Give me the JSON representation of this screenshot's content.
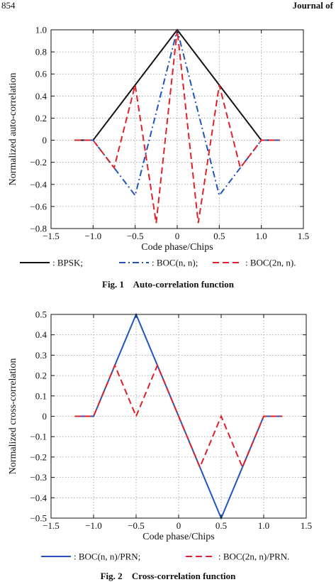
{
  "header": {
    "page_number": "854",
    "journal": "Journal of"
  },
  "figures": [
    {
      "caption_label": "Fig. 1",
      "caption_text": "Auto-correlation function"
    },
    {
      "caption_label": "Fig. 2",
      "caption_text": "Cross-correlation function"
    }
  ],
  "chart_data": [
    {
      "type": "line",
      "title": "",
      "xlabel": "Code phase/Chips",
      "ylabel": "Normalized  auto-correlation",
      "xlim": [
        -1.5,
        1.5
      ],
      "ylim": [
        -0.8,
        1.0
      ],
      "xticks": [
        -1.5,
        -1.0,
        -0.5,
        0,
        0.5,
        1.0,
        1.5
      ],
      "xtick_labels": [
        "−1.5",
        "−1.0",
        "−0.5",
        "0",
        "0.5",
        "1.0",
        "1.5"
      ],
      "yticks": [
        -0.8,
        -0.6,
        -0.4,
        -0.2,
        0,
        0.2,
        0.4,
        0.6,
        0.8,
        1.0
      ],
      "ytick_labels": [
        "−0.8",
        "−0.6",
        "−0.4",
        "−0.2",
        "0",
        "0.2",
        "0.4",
        "0.6",
        "0.8",
        "1.0"
      ],
      "grid": true,
      "legend_position": "below",
      "series": [
        {
          "name": ": BPSK;",
          "color": "#111111",
          "dash": "solid",
          "x": [
            -1.22,
            -1.0,
            0,
            1.0,
            1.22
          ],
          "y": [
            0,
            0,
            1.0,
            0,
            0
          ]
        },
        {
          "name": ": BOC(n, n);",
          "color": "#2255bb",
          "dash": "dashdot",
          "x": [
            -1.22,
            -1.0,
            -0.5,
            0,
            0.5,
            1.0,
            1.22
          ],
          "y": [
            0,
            0,
            -0.5,
            1.0,
            -0.5,
            0,
            0
          ]
        },
        {
          "name": ": BOC(2n, n).",
          "color": "#e0202a",
          "dash": "dashed",
          "x": [
            -1.22,
            -1.0,
            -0.75,
            -0.5,
            -0.25,
            0,
            0.25,
            0.5,
            0.75,
            1.0,
            1.22
          ],
          "y": [
            0,
            0,
            -0.25,
            0.5,
            -0.75,
            1.0,
            -0.75,
            0.5,
            -0.25,
            0,
            0
          ]
        }
      ]
    },
    {
      "type": "line",
      "title": "",
      "xlabel": "Code phase/Chips",
      "ylabel": "Normalized cross-correlation",
      "xlim": [
        -1.5,
        1.5
      ],
      "ylim": [
        -0.5,
        0.5
      ],
      "xticks": [
        -1.5,
        -1.0,
        -0.5,
        0,
        0.5,
        1.0,
        1.5
      ],
      "xtick_labels": [
        "−1.5",
        "−1.0",
        "−0.5",
        "0",
        "0.5",
        "1.0",
        "1.5"
      ],
      "yticks": [
        -0.5,
        -0.4,
        -0.3,
        -0.2,
        -0.1,
        0,
        0.1,
        0.2,
        0.3,
        0.4,
        0.5
      ],
      "ytick_labels": [
        "−0.5",
        "−0.4",
        "−0.3",
        "−0.2",
        "−0.1",
        "0",
        "0.1",
        "0.2",
        "0.3",
        "0.4",
        "0.5"
      ],
      "grid": true,
      "legend_position": "below",
      "series": [
        {
          "name": ": BOC(n, n)/PRN;",
          "color": "#2255bb",
          "dash": "solid",
          "x": [
            -1.22,
            -1.0,
            -0.5,
            0.5,
            1.0,
            1.22
          ],
          "y": [
            0,
            0,
            0.5,
            -0.5,
            0,
            0
          ]
        },
        {
          "name": ": BOC(2n, n)/PRN.",
          "color": "#e0202a",
          "dash": "dashed",
          "x": [
            -1.22,
            -1.0,
            -0.75,
            -0.5,
            -0.25,
            0.25,
            0.5,
            0.75,
            1.0,
            1.22
          ],
          "y": [
            0,
            0,
            0.25,
            0,
            0.25,
            -0.25,
            0,
            -0.25,
            0,
            0
          ]
        }
      ]
    }
  ]
}
